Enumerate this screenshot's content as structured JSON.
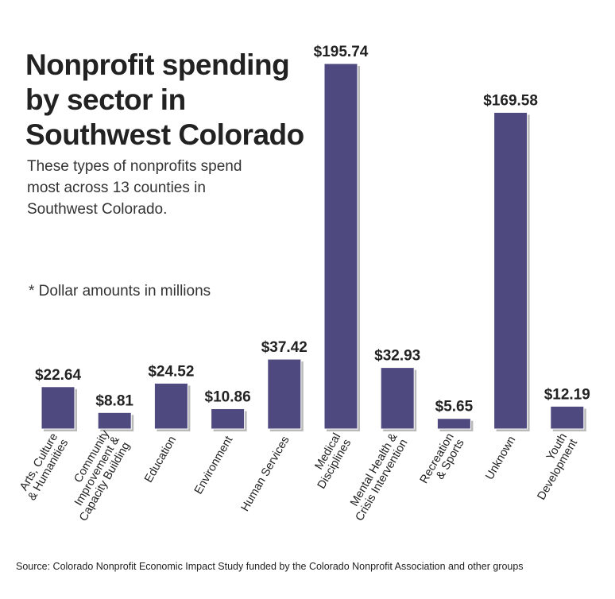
{
  "title": "Nonprofit spending\nby sector in\nSouthwest Colorado",
  "subtitle": "These types of nonprofits spend\nmost across 13 counties in\nSouthwest Colorado.",
  "note": "* Dollar amounts in millions",
  "source": "Source: Colorado Nonprofit Economic Impact Study funded by the Colorado Nonprofit Association and other groups",
  "colors": {
    "bar": "#4e4a80",
    "bar_shadow": "#b9b9b9",
    "text": "#222222"
  },
  "chart_data": {
    "type": "bar",
    "categories": [
      "Arts, Culture\n& Humanities",
      "Community\nImprovement &\nCapacity Building",
      "Education",
      "Environment",
      "Human Services",
      "Medical\nDisciplines",
      "Mental Health &\nCrisis Intervention",
      "Recreation\n& Sports",
      "Unknown",
      "Youth\nDevelopment"
    ],
    "values": [
      22.64,
      8.81,
      24.52,
      10.86,
      37.42,
      195.74,
      32.93,
      5.65,
      169.58,
      12.19
    ],
    "data_labels": [
      "$22.64",
      "$8.81",
      "$24.52",
      "$10.86",
      "$37.42",
      "$195.74",
      "$32.93",
      "$5.65",
      "$169.58",
      "$12.19"
    ],
    "ylim": [
      0,
      195.74
    ],
    "grid": false
  }
}
